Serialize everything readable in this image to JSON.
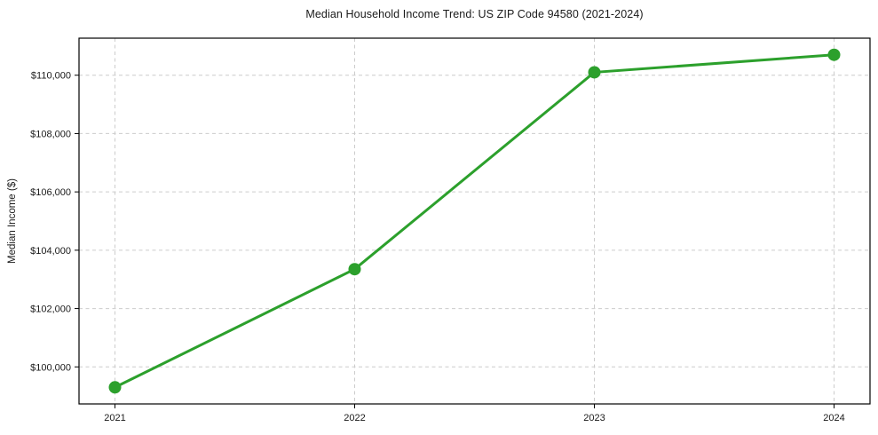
{
  "page": {
    "title": "Median Household Income Trend: US ZIP Code 94580 (2021-2024)"
  },
  "chart_data": {
    "type": "line",
    "title": "Median Household Income Trend: US ZIP Code 94580 (2021-2024)",
    "xlabel": "",
    "ylabel": "Median Income ($)",
    "categories": [
      "2021",
      "2022",
      "2023",
      "2024"
    ],
    "series": [
      {
        "name": "Median Household Income",
        "values": [
          99300,
          103350,
          110100,
          110700
        ]
      }
    ],
    "y_ticks": [
      100000,
      102000,
      104000,
      106000,
      108000,
      110000
    ],
    "y_tick_labels": [
      "$100,000",
      "$102,000",
      "$104,000",
      "$106,000",
      "$108,000",
      "$110,000"
    ],
    "ylim": [
      98730,
      111270
    ],
    "grid": true,
    "grid_style": "dashed",
    "legend": "none",
    "colors": {
      "line": "#2ca02c",
      "marker": "#2ca02c",
      "grid": "#cccccc",
      "axis": "#000000",
      "text": "#1a1a1a"
    }
  }
}
